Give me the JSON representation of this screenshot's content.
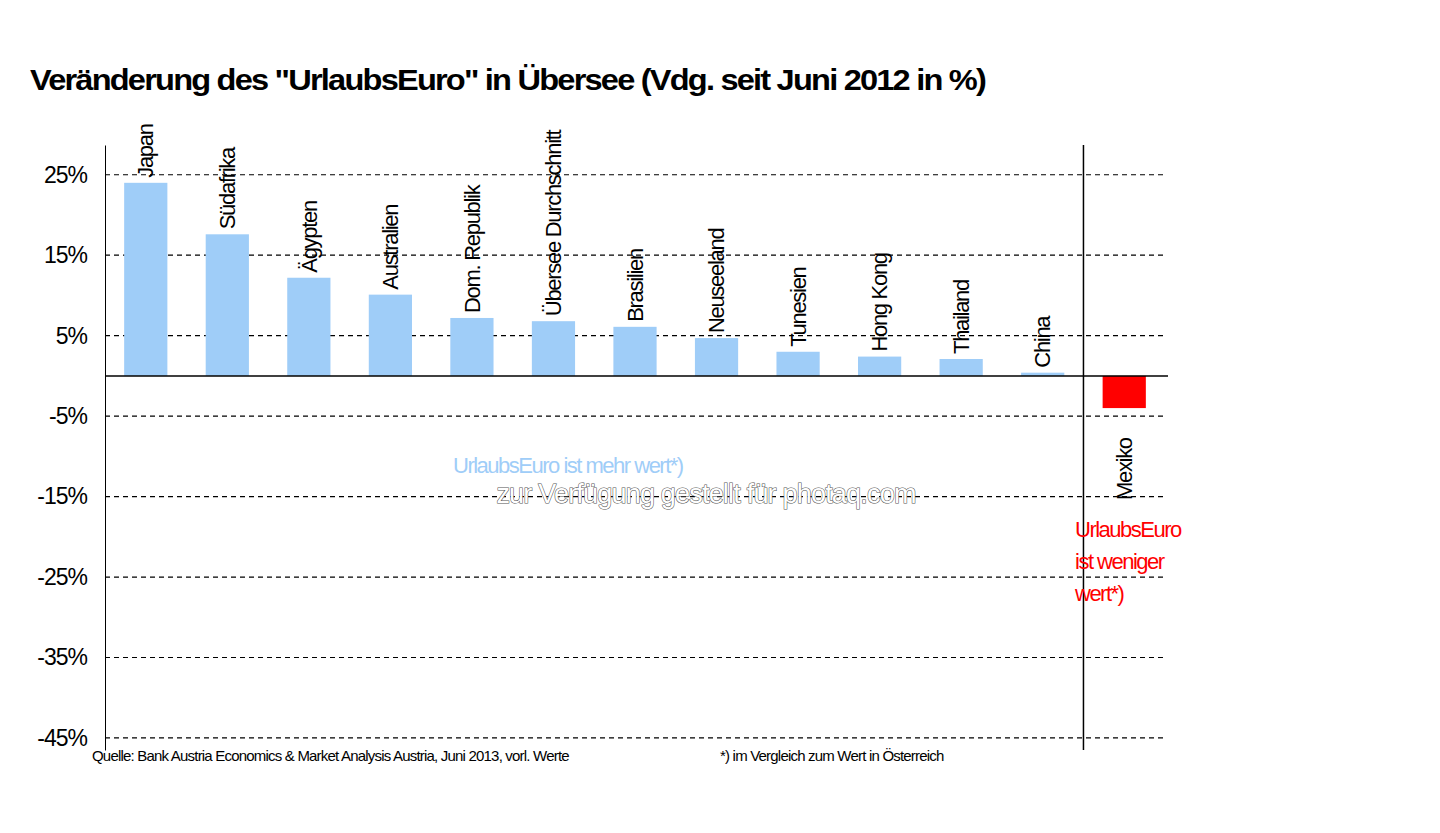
{
  "chart_data": {
    "type": "bar",
    "title": "Veränderung des \"UrlaubsEuro\" in Übersee (Vdg. seit Juni 2012 in %)",
    "categories": [
      "Japan",
      "Südafrika",
      "Ägypten",
      "Australien",
      "Dom. Republik",
      "Übersee Durchschnitt",
      "Brasilien",
      "Neuseeland",
      "Tunesien",
      "Hong Kong",
      "Thailand",
      "China",
      "Mexiko"
    ],
    "values": [
      24.0,
      17.6,
      12.2,
      10.1,
      7.2,
      6.8,
      6.1,
      4.7,
      3.0,
      2.4,
      2.1,
      0.4,
      -4.0
    ],
    "colors": [
      "#9fcdf8",
      "#9fcdf8",
      "#9fcdf8",
      "#9fcdf8",
      "#9fcdf8",
      "#9fcdf8",
      "#9fcdf8",
      "#9fcdf8",
      "#9fcdf8",
      "#9fcdf8",
      "#9fcdf8",
      "#9fcdf8",
      "#ff0000"
    ],
    "ylim": [
      -46.5,
      28.7
    ],
    "yticks": [
      {
        "value": 25,
        "label": "25%"
      },
      {
        "value": 15,
        "label": "15%"
      },
      {
        "value": 5,
        "label": "5%"
      },
      {
        "value": -5,
        "label": "-5%"
      },
      {
        "value": -15,
        "label": "-15%"
      },
      {
        "value": -25,
        "label": "-25%"
      },
      {
        "value": -35,
        "label": "-35%"
      },
      {
        "value": -45,
        "label": "-45%"
      }
    ],
    "grid": true,
    "annotations": [
      "UrlaubsEuro ist mehr wert*)",
      "UrlaubsEuro ist weniger wert*)",
      "zur Verfügung gestellt für photaq.com"
    ],
    "source": "Quelle: Bank Austria Economics & Market Analysis Austria, Juni 2013, vorl. Werte",
    "footnote": "*) im Vergleich zum Wert in Österreich"
  }
}
